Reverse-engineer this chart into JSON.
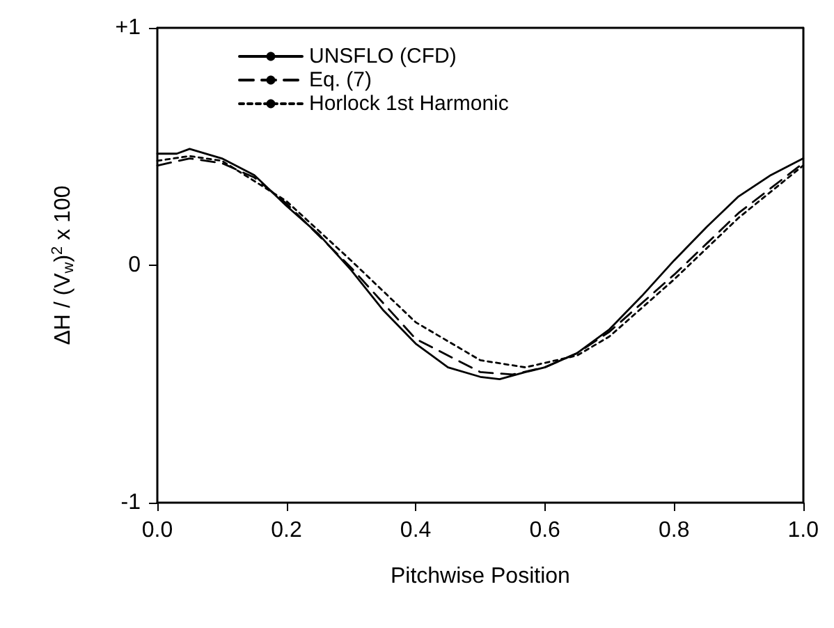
{
  "chart_data": {
    "type": "line",
    "xlabel": "Pitchwise Position",
    "ylabel": "ΔH / (V$_{w}$)$^{2}$ x 100",
    "xlim": [
      0,
      1
    ],
    "xticks": [
      {
        "value": 0,
        "label": "0.0"
      },
      {
        "value": 0.2,
        "label": "0.2"
      },
      {
        "value": 0.4,
        "label": "0.4"
      },
      {
        "value": 0.6,
        "label": "0.6"
      },
      {
        "value": 0.8,
        "label": "0.8"
      },
      {
        "value": 1,
        "label": "1.0"
      }
    ],
    "ylim": [
      -1,
      1
    ],
    "yticks": [
      {
        "value": -1,
        "label": "-1"
      },
      0,
      {
        "value": 1,
        "label": "+1"
      }
    ],
    "grid": false,
    "legend": "top left",
    "marker": "none",
    "series": [
      {
        "name": "UNSFLO (CFD)",
        "color": "#000000",
        "line_style": "solid",
        "x": [
          0,
          0.03,
          0.05,
          0.1,
          0.15,
          0.2,
          0.25,
          0.3,
          0.35,
          0.4,
          0.45,
          0.5,
          0.53,
          0.57,
          0.6,
          0.65,
          0.7,
          0.75,
          0.8,
          0.85,
          0.9,
          0.95,
          1.0
        ],
        "values": [
          0.47,
          0.47,
          0.49,
          0.45,
          0.38,
          0.25,
          0.13,
          -0.02,
          -0.19,
          -0.33,
          -0.43,
          -0.47,
          -0.48,
          -0.45,
          -0.43,
          -0.37,
          -0.27,
          -0.13,
          0.02,
          0.16,
          0.29,
          0.38,
          0.45
        ]
      },
      {
        "name": "Eq. (7)",
        "color": "#000000",
        "line_style": "dashed",
        "x": [
          0,
          0.05,
          0.1,
          0.15,
          0.2,
          0.3,
          0.4,
          0.5,
          0.55,
          0.6,
          0.65,
          0.7,
          0.8,
          0.9,
          1.0
        ],
        "values": [
          0.42,
          0.45,
          0.43,
          0.37,
          0.26,
          -0.01,
          -0.31,
          -0.45,
          -0.46,
          -0.43,
          -0.37,
          -0.28,
          -0.04,
          0.22,
          0.43
        ]
      },
      {
        "name": "Horlock 1st Harmonic",
        "color": "#000000",
        "line_style": "dotted",
        "x": [
          0,
          0.05,
          0.1,
          0.2,
          0.3,
          0.4,
          0.5,
          0.57,
          0.65,
          0.7,
          0.8,
          0.9,
          1.0
        ],
        "values": [
          0.44,
          0.46,
          0.44,
          0.27,
          0.02,
          -0.24,
          -0.4,
          -0.43,
          -0.38,
          -0.3,
          -0.06,
          0.2,
          0.42
        ]
      }
    ]
  }
}
